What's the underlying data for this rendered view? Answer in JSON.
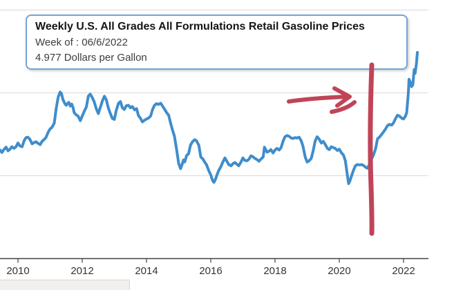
{
  "tooltip": {
    "title": "Weekly U.S. All Grades All Formulations Retail Gasoline Prices",
    "week": "Week of : 06/6/2022",
    "value": "4.977 Dollars per Gallon",
    "border_color": "#74a4d4"
  },
  "colors": {
    "line": "#3f8dcc",
    "annotation_red": "#c04458",
    "gridline": "#d9d9d9",
    "axis": "#404040",
    "tick_label": "#333333",
    "background": "#ffffff"
  },
  "x_axis": {
    "tick_years": [
      2010,
      2012,
      2014,
      2016,
      2018,
      2020,
      2022
    ],
    "tick_labels": [
      "2010",
      "2012",
      "2014",
      "2016",
      "2018",
      "2020",
      "2022"
    ]
  },
  "annotations": [
    {
      "id": "arrow",
      "description": "hand-drawn red arrow pointing right toward the 2021-2022 price spike",
      "color": "#c04458"
    },
    {
      "id": "vline",
      "description": "hand-drawn red vertical line at start of 2021",
      "color": "#c04458",
      "x_year": 2021.0
    }
  ],
  "chart_data": {
    "type": "line",
    "title": "Weekly U.S. All Grades All Formulations Retail Gasoline Prices",
    "xlabel": "",
    "ylabel": "Dollars per Gallon",
    "xlim": [
      2009.44,
      2022.77
    ],
    "ylim": [
      0,
      6.24
    ],
    "grid": true,
    "ytick_values": [
      2,
      4,
      6
    ],
    "highlighted_point": {
      "date": "06/6/2022",
      "year": 2022.43,
      "value": 4.977
    },
    "series": [
      {
        "name": "U.S. All Grades All Formulations Retail Gasoline Price",
        "units": "Dollars per Gallon",
        "points": [
          [
            2009.44,
            2.62
          ],
          [
            2009.5,
            2.56
          ],
          [
            2009.56,
            2.63
          ],
          [
            2009.63,
            2.69
          ],
          [
            2009.69,
            2.6
          ],
          [
            2009.75,
            2.64
          ],
          [
            2009.81,
            2.7
          ],
          [
            2009.87,
            2.66
          ],
          [
            2009.94,
            2.7
          ],
          [
            2010.0,
            2.79
          ],
          [
            2010.06,
            2.72
          ],
          [
            2010.13,
            2.7
          ],
          [
            2010.19,
            2.84
          ],
          [
            2010.25,
            2.92
          ],
          [
            2010.31,
            2.93
          ],
          [
            2010.37,
            2.88
          ],
          [
            2010.44,
            2.77
          ],
          [
            2010.5,
            2.8
          ],
          [
            2010.56,
            2.82
          ],
          [
            2010.63,
            2.78
          ],
          [
            2010.69,
            2.75
          ],
          [
            2010.75,
            2.83
          ],
          [
            2010.81,
            2.87
          ],
          [
            2010.87,
            2.92
          ],
          [
            2010.94,
            3.05
          ],
          [
            2011.0,
            3.13
          ],
          [
            2011.06,
            3.17
          ],
          [
            2011.13,
            3.27
          ],
          [
            2011.19,
            3.62
          ],
          [
            2011.25,
            3.89
          ],
          [
            2011.31,
            4.02
          ],
          [
            2011.35,
            3.99
          ],
          [
            2011.4,
            3.84
          ],
          [
            2011.46,
            3.74
          ],
          [
            2011.5,
            3.7
          ],
          [
            2011.54,
            3.74
          ],
          [
            2011.58,
            3.77
          ],
          [
            2011.63,
            3.68
          ],
          [
            2011.67,
            3.73
          ],
          [
            2011.71,
            3.66
          ],
          [
            2011.75,
            3.52
          ],
          [
            2011.81,
            3.47
          ],
          [
            2011.87,
            3.44
          ],
          [
            2011.94,
            3.33
          ],
          [
            2012.0,
            3.44
          ],
          [
            2012.06,
            3.55
          ],
          [
            2012.13,
            3.66
          ],
          [
            2012.19,
            3.92
          ],
          [
            2012.25,
            3.97
          ],
          [
            2012.31,
            3.89
          ],
          [
            2012.37,
            3.79
          ],
          [
            2012.44,
            3.61
          ],
          [
            2012.5,
            3.5
          ],
          [
            2012.56,
            3.64
          ],
          [
            2012.63,
            3.81
          ],
          [
            2012.69,
            3.92
          ],
          [
            2012.75,
            3.83
          ],
          [
            2012.81,
            3.64
          ],
          [
            2012.87,
            3.51
          ],
          [
            2012.94,
            3.38
          ],
          [
            2013.0,
            3.36
          ],
          [
            2013.06,
            3.58
          ],
          [
            2013.13,
            3.75
          ],
          [
            2013.19,
            3.79
          ],
          [
            2013.25,
            3.64
          ],
          [
            2013.31,
            3.6
          ],
          [
            2013.37,
            3.69
          ],
          [
            2013.44,
            3.7
          ],
          [
            2013.5,
            3.64
          ],
          [
            2013.56,
            3.67
          ],
          [
            2013.63,
            3.59
          ],
          [
            2013.69,
            3.62
          ],
          [
            2013.75,
            3.45
          ],
          [
            2013.81,
            3.39
          ],
          [
            2013.87,
            3.3
          ],
          [
            2013.94,
            3.34
          ],
          [
            2014.0,
            3.37
          ],
          [
            2014.06,
            3.39
          ],
          [
            2014.13,
            3.44
          ],
          [
            2014.19,
            3.6
          ],
          [
            2014.25,
            3.7
          ],
          [
            2014.31,
            3.74
          ],
          [
            2014.37,
            3.72
          ],
          [
            2014.44,
            3.75
          ],
          [
            2014.5,
            3.68
          ],
          [
            2014.56,
            3.61
          ],
          [
            2014.63,
            3.52
          ],
          [
            2014.69,
            3.46
          ],
          [
            2014.75,
            3.27
          ],
          [
            2014.81,
            3.1
          ],
          [
            2014.87,
            2.95
          ],
          [
            2014.94,
            2.62
          ],
          [
            2015.0,
            2.3
          ],
          [
            2015.06,
            2.17
          ],
          [
            2015.1,
            2.25
          ],
          [
            2015.15,
            2.38
          ],
          [
            2015.19,
            2.33
          ],
          [
            2015.25,
            2.49
          ],
          [
            2015.31,
            2.53
          ],
          [
            2015.37,
            2.74
          ],
          [
            2015.44,
            2.83
          ],
          [
            2015.5,
            2.87
          ],
          [
            2015.56,
            2.84
          ],
          [
            2015.63,
            2.73
          ],
          [
            2015.69,
            2.45
          ],
          [
            2015.75,
            2.41
          ],
          [
            2015.81,
            2.33
          ],
          [
            2015.87,
            2.26
          ],
          [
            2015.94,
            2.12
          ],
          [
            2016.0,
            2.02
          ],
          [
            2016.06,
            1.88
          ],
          [
            2016.1,
            1.84
          ],
          [
            2016.15,
            1.92
          ],
          [
            2016.19,
            2.01
          ],
          [
            2016.25,
            2.13
          ],
          [
            2016.31,
            2.21
          ],
          [
            2016.37,
            2.32
          ],
          [
            2016.44,
            2.43
          ],
          [
            2016.5,
            2.35
          ],
          [
            2016.56,
            2.27
          ],
          [
            2016.63,
            2.24
          ],
          [
            2016.69,
            2.29
          ],
          [
            2016.75,
            2.32
          ],
          [
            2016.81,
            2.28
          ],
          [
            2016.87,
            2.24
          ],
          [
            2016.94,
            2.33
          ],
          [
            2017.0,
            2.43
          ],
          [
            2017.06,
            2.37
          ],
          [
            2017.13,
            2.36
          ],
          [
            2017.19,
            2.4
          ],
          [
            2017.25,
            2.48
          ],
          [
            2017.31,
            2.46
          ],
          [
            2017.37,
            2.42
          ],
          [
            2017.44,
            2.39
          ],
          [
            2017.5,
            2.35
          ],
          [
            2017.56,
            2.4
          ],
          [
            2017.63,
            2.45
          ],
          [
            2017.67,
            2.69
          ],
          [
            2017.71,
            2.63
          ],
          [
            2017.75,
            2.57
          ],
          [
            2017.81,
            2.59
          ],
          [
            2017.87,
            2.63
          ],
          [
            2017.94,
            2.55
          ],
          [
            2018.0,
            2.62
          ],
          [
            2018.06,
            2.66
          ],
          [
            2018.13,
            2.62
          ],
          [
            2018.19,
            2.68
          ],
          [
            2018.25,
            2.83
          ],
          [
            2018.31,
            2.94
          ],
          [
            2018.37,
            2.97
          ],
          [
            2018.44,
            2.95
          ],
          [
            2018.5,
            2.91
          ],
          [
            2018.56,
            2.9
          ],
          [
            2018.63,
            2.92
          ],
          [
            2018.69,
            2.91
          ],
          [
            2018.75,
            2.93
          ],
          [
            2018.81,
            2.85
          ],
          [
            2018.87,
            2.71
          ],
          [
            2018.94,
            2.45
          ],
          [
            2019.0,
            2.33
          ],
          [
            2019.06,
            2.36
          ],
          [
            2019.13,
            2.42
          ],
          [
            2019.19,
            2.61
          ],
          [
            2019.25,
            2.84
          ],
          [
            2019.31,
            2.94
          ],
          [
            2019.37,
            2.89
          ],
          [
            2019.44,
            2.79
          ],
          [
            2019.5,
            2.83
          ],
          [
            2019.56,
            2.76
          ],
          [
            2019.63,
            2.66
          ],
          [
            2019.69,
            2.63
          ],
          [
            2019.75,
            2.7
          ],
          [
            2019.81,
            2.68
          ],
          [
            2019.87,
            2.66
          ],
          [
            2019.94,
            2.61
          ],
          [
            2020.0,
            2.64
          ],
          [
            2020.06,
            2.56
          ],
          [
            2020.13,
            2.5
          ],
          [
            2020.19,
            2.36
          ],
          [
            2020.25,
            2.02
          ],
          [
            2020.29,
            1.81
          ],
          [
            2020.33,
            1.87
          ],
          [
            2020.37,
            1.97
          ],
          [
            2020.44,
            2.13
          ],
          [
            2020.5,
            2.24
          ],
          [
            2020.56,
            2.27
          ],
          [
            2020.63,
            2.26
          ],
          [
            2020.69,
            2.27
          ],
          [
            2020.75,
            2.25
          ],
          [
            2020.81,
            2.21
          ],
          [
            2020.87,
            2.18
          ],
          [
            2020.94,
            2.27
          ],
          [
            2021.0,
            2.4
          ],
          [
            2021.06,
            2.49
          ],
          [
            2021.13,
            2.65
          ],
          [
            2021.19,
            2.89
          ],
          [
            2021.25,
            2.93
          ],
          [
            2021.31,
            2.99
          ],
          [
            2021.37,
            3.05
          ],
          [
            2021.44,
            3.13
          ],
          [
            2021.5,
            3.21
          ],
          [
            2021.56,
            3.24
          ],
          [
            2021.63,
            3.22
          ],
          [
            2021.69,
            3.28
          ],
          [
            2021.75,
            3.38
          ],
          [
            2021.81,
            3.46
          ],
          [
            2021.87,
            3.44
          ],
          [
            2021.94,
            3.39
          ],
          [
            2022.0,
            3.37
          ],
          [
            2022.06,
            3.44
          ],
          [
            2022.1,
            3.53
          ],
          [
            2022.15,
            4.02
          ],
          [
            2022.17,
            4.33
          ],
          [
            2022.21,
            4.26
          ],
          [
            2022.25,
            4.15
          ],
          [
            2022.29,
            4.2
          ],
          [
            2022.33,
            4.56
          ],
          [
            2022.36,
            4.47
          ],
          [
            2022.4,
            4.7
          ],
          [
            2022.43,
            4.977
          ]
        ]
      }
    ]
  }
}
